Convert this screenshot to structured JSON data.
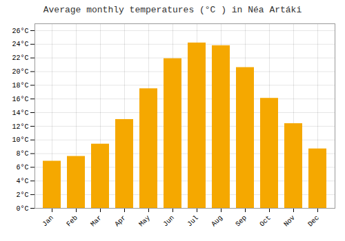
{
  "chart_data": {
    "type": "bar",
    "title": "Average monthly temperatures (°C ) in Néa Artáki",
    "categories": [
      "Jan",
      "Feb",
      "Mar",
      "Apr",
      "May",
      "Jun",
      "Jul",
      "Aug",
      "Sep",
      "Oct",
      "Nov",
      "Dec"
    ],
    "values": [
      6.9,
      7.6,
      9.4,
      13.0,
      17.5,
      21.9,
      24.2,
      23.8,
      20.6,
      16.1,
      12.4,
      8.7
    ],
    "color": "#F5A800",
    "ylim": [
      0,
      27
    ],
    "yticks": [
      {
        "value": 0,
        "label": "0°C"
      },
      {
        "value": 2,
        "label": "2°C"
      },
      {
        "value": 4,
        "label": "4°C"
      },
      {
        "value": 6,
        "label": "6°C"
      },
      {
        "value": 8,
        "label": "8°C"
      },
      {
        "value": 10,
        "label": "10°C"
      },
      {
        "value": 12,
        "label": "12°C"
      },
      {
        "value": 14,
        "label": "14°C"
      },
      {
        "value": 16,
        "label": "16°C"
      },
      {
        "value": 18,
        "label": "18°C"
      },
      {
        "value": 20,
        "label": "20°C"
      },
      {
        "value": 22,
        "label": "22°C"
      },
      {
        "value": 24,
        "label": "24°C"
      },
      {
        "value": 26,
        "label": "26°C"
      }
    ],
    "grid": true
  }
}
